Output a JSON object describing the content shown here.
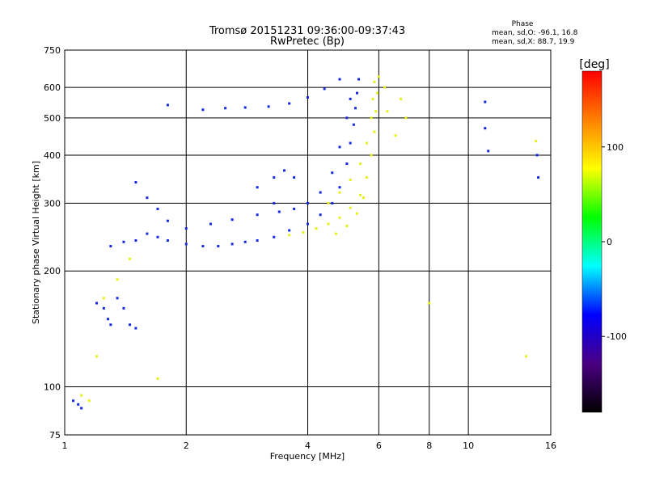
{
  "chart_data": {
    "type": "scatter",
    "title": "Tromsø 20151231 09:36:00-09:37:43",
    "subtitle": "RwPretec (Bp)",
    "xlabel": "Frequency [MHz]",
    "ylabel": "Stationary phase Virtual Height [km]",
    "x_scale": "log",
    "y_scale": "log",
    "xlim": [
      1,
      16
    ],
    "ylim": [
      75,
      750
    ],
    "x_ticks": [
      "1",
      "2",
      "4",
      "6",
      "8",
      "10",
      "16"
    ],
    "x_tick_values": [
      1,
      2,
      4,
      6,
      8,
      10,
      16
    ],
    "y_ticks": [
      "75",
      "100",
      "200",
      "300",
      "400",
      "500",
      "600",
      "750"
    ],
    "y_tick_values": [
      75,
      100,
      200,
      300,
      400,
      500,
      600,
      750
    ],
    "grid": true,
    "stats_title": "Phase",
    "stats_lines": [
      "mean, sd,O: -96.1, 16.8",
      "mean, sd,X: 88.7, 19.9"
    ],
    "colorbar": {
      "label": "[deg]",
      "ticks": [
        "100",
        "0",
        "-100"
      ],
      "tick_values": [
        100,
        0,
        -100
      ],
      "range": [
        -180,
        180
      ],
      "colors": [
        "#000000",
        "#4b0082",
        "#0000ff",
        "#00ffff",
        "#00ff00",
        "#ffff00",
        "#ff8000",
        "#ff0000"
      ]
    },
    "series": [
      {
        "name": "O",
        "color_value": -96.1,
        "color": "#1428e6",
        "points": [
          [
            1.05,
            92
          ],
          [
            1.08,
            90
          ],
          [
            1.1,
            88
          ],
          [
            1.2,
            165
          ],
          [
            1.25,
            160
          ],
          [
            1.28,
            150
          ],
          [
            1.3,
            145
          ],
          [
            1.35,
            170
          ],
          [
            1.4,
            160
          ],
          [
            1.45,
            145
          ],
          [
            1.5,
            142
          ],
          [
            1.3,
            232
          ],
          [
            1.4,
            238
          ],
          [
            1.5,
            240
          ],
          [
            1.6,
            250
          ],
          [
            1.7,
            245
          ],
          [
            1.8,
            240
          ],
          [
            2.0,
            235
          ],
          [
            2.2,
            232
          ],
          [
            2.4,
            232
          ],
          [
            2.6,
            235
          ],
          [
            2.8,
            238
          ],
          [
            3.0,
            240
          ],
          [
            3.3,
            245
          ],
          [
            3.6,
            255
          ],
          [
            4.0,
            265
          ],
          [
            4.3,
            280
          ],
          [
            4.6,
            300
          ],
          [
            4.8,
            330
          ],
          [
            5.0,
            380
          ],
          [
            5.1,
            430
          ],
          [
            5.2,
            480
          ],
          [
            5.25,
            530
          ],
          [
            5.3,
            580
          ],
          [
            5.35,
            630
          ],
          [
            1.5,
            340
          ],
          [
            1.6,
            310
          ],
          [
            1.7,
            290
          ],
          [
            1.8,
            270
          ],
          [
            2.0,
            258
          ],
          [
            2.3,
            265
          ],
          [
            2.6,
            272
          ],
          [
            3.0,
            280
          ],
          [
            3.4,
            285
          ],
          [
            3.7,
            290
          ],
          [
            4.0,
            300
          ],
          [
            4.3,
            320
          ],
          [
            4.6,
            360
          ],
          [
            4.8,
            420
          ],
          [
            5.0,
            500
          ],
          [
            5.1,
            560
          ],
          [
            2.2,
            525
          ],
          [
            2.5,
            530
          ],
          [
            2.8,
            532
          ],
          [
            3.2,
            535
          ],
          [
            3.6,
            545
          ],
          [
            4.0,
            565
          ],
          [
            4.4,
            595
          ],
          [
            4.8,
            630
          ],
          [
            3.0,
            330
          ],
          [
            3.3,
            350
          ],
          [
            3.5,
            365
          ],
          [
            3.7,
            350
          ],
          [
            3.3,
            300
          ],
          [
            1.8,
            540
          ],
          [
            11.0,
            550
          ],
          [
            11.0,
            470
          ],
          [
            11.2,
            410
          ],
          [
            14.8,
            400
          ],
          [
            14.9,
            350
          ]
        ]
      },
      {
        "name": "X",
        "color_value": 88.7,
        "color": "#e6f014",
        "points": [
          [
            1.2,
            120
          ],
          [
            1.25,
            170
          ],
          [
            1.35,
            190
          ],
          [
            1.45,
            215
          ],
          [
            3.6,
            248
          ],
          [
            3.9,
            252
          ],
          [
            4.2,
            258
          ],
          [
            4.5,
            265
          ],
          [
            4.8,
            275
          ],
          [
            5.1,
            292
          ],
          [
            5.4,
            315
          ],
          [
            5.6,
            350
          ],
          [
            5.75,
            400
          ],
          [
            5.85,
            460
          ],
          [
            5.9,
            520
          ],
          [
            5.95,
            580
          ],
          [
            6.0,
            640
          ],
          [
            4.5,
            300
          ],
          [
            4.8,
            320
          ],
          [
            5.1,
            345
          ],
          [
            5.4,
            380
          ],
          [
            5.6,
            430
          ],
          [
            5.75,
            500
          ],
          [
            5.8,
            560
          ],
          [
            5.85,
            620
          ],
          [
            6.2,
            600
          ],
          [
            6.3,
            520
          ],
          [
            6.6,
            450
          ],
          [
            6.8,
            560
          ],
          [
            7.0,
            500
          ],
          [
            4.7,
            250
          ],
          [
            5.0,
            262
          ],
          [
            5.3,
            282
          ],
          [
            5.5,
            310
          ],
          [
            1.1,
            95
          ],
          [
            1.15,
            92
          ],
          [
            1.7,
            105
          ],
          [
            8.0,
            165
          ],
          [
            13.9,
            120
          ],
          [
            14.7,
            435
          ]
        ]
      }
    ]
  }
}
